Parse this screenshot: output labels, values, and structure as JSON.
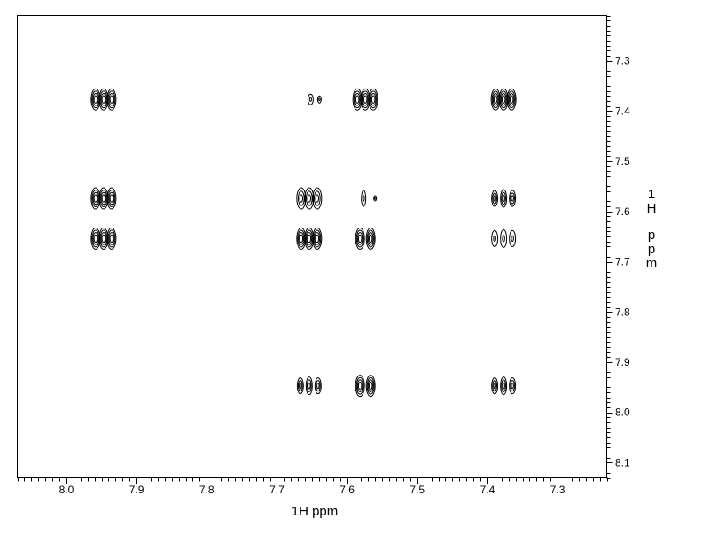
{
  "chart_data": {
    "type": "heatmap",
    "subtype": "2D NMR contour plot (COSY)",
    "xlabel": "1H ppm",
    "ylabel": "1H ppm",
    "xlim": [
      8.07,
      7.23
    ],
    "ylim": [
      7.21,
      8.13
    ],
    "x_axis_reversed": true,
    "y_axis_increases_downward": true,
    "x_tick_labels": [
      "8.0",
      "7.9",
      "7.8",
      "7.7",
      "7.6",
      "7.5",
      "7.4",
      "7.3"
    ],
    "y_tick_labels": [
      "7.3",
      "7.4",
      "7.5",
      "7.6",
      "7.7",
      "7.8",
      "7.9",
      "8.0",
      "8.1"
    ],
    "grid": false,
    "y_axis_side": "right",
    "contour_color": "#000000",
    "peaks": [
      {
        "x": 7.947,
        "y": 7.377,
        "strength": "strong",
        "shape": "multiplet"
      },
      {
        "x": 7.947,
        "y": 7.574,
        "strength": "strong",
        "shape": "multiplet"
      },
      {
        "x": 7.947,
        "y": 7.654,
        "strength": "strong",
        "shape": "multiplet"
      },
      {
        "x": 7.647,
        "y": 7.377,
        "strength": "weak",
        "shape": "pair"
      },
      {
        "x": 7.654,
        "y": 7.574,
        "strength": "medium",
        "shape": "multiplet"
      },
      {
        "x": 7.654,
        "y": 7.654,
        "strength": "strong",
        "shape": "multiplet"
      },
      {
        "x": 7.654,
        "y": 7.947,
        "strength": "medium",
        "shape": "triplet"
      },
      {
        "x": 7.574,
        "y": 7.377,
        "strength": "strong",
        "shape": "multiplet"
      },
      {
        "x": 7.574,
        "y": 7.574,
        "strength": "weak",
        "shape": "artifact"
      },
      {
        "x": 7.574,
        "y": 7.654,
        "strength": "strong",
        "shape": "doublet"
      },
      {
        "x": 7.574,
        "y": 7.947,
        "strength": "strong",
        "shape": "doublet"
      },
      {
        "x": 7.377,
        "y": 7.377,
        "strength": "strong",
        "shape": "multiplet"
      },
      {
        "x": 7.377,
        "y": 7.574,
        "strength": "medium",
        "shape": "triplet"
      },
      {
        "x": 7.377,
        "y": 7.654,
        "strength": "weak",
        "shape": "triplet"
      },
      {
        "x": 7.377,
        "y": 7.947,
        "strength": "medium",
        "shape": "triplet"
      }
    ]
  }
}
